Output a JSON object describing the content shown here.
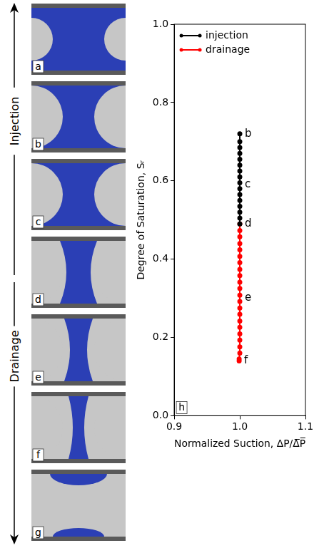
{
  "chart_data": {
    "type": "line",
    "x_label": "Normalized Suction, ΔP/Δ̅P̅",
    "y_label": "Degree of Saturation, Sᵣ",
    "panel_label": "h",
    "xlim": [
      0.9,
      1.1
    ],
    "xticks": [
      0.9,
      {
        "value": 1,
        "label": "1.0"
      },
      1.1
    ],
    "ylim": [
      0,
      1
    ],
    "yticks": [
      {
        "value": 0,
        "label": "0.0"
      },
      0.2,
      0.4,
      0.6,
      0.8,
      {
        "value": 1,
        "label": "1.0"
      }
    ],
    "grid": false,
    "legend": "upper left",
    "series": [
      {
        "name": "injection",
        "color": "#000000",
        "marker": "o",
        "line_style": "solid",
        "x": [
          1.0,
          1.0,
          1.0,
          1.0,
          1.0,
          1.0,
          1.0,
          1.0,
          1.0,
          1.0,
          1.0,
          1.0,
          1.0,
          1.0,
          1.0,
          1.0
        ],
        "values": [
          0.49,
          0.505,
          0.52,
          0.535,
          0.55,
          0.565,
          0.58,
          0.595,
          0.61,
          0.625,
          0.64,
          0.655,
          0.67,
          0.685,
          0.7,
          0.72
        ]
      },
      {
        "name": "drainage",
        "color": "#ff0000",
        "marker": "o",
        "line_style": "solid",
        "x": [
          1.0,
          1.0,
          1.0,
          1.0,
          1.0,
          1.0,
          1.0,
          1.0,
          1.0,
          1.0,
          1.0,
          1.0,
          1.0,
          1.0,
          1.0,
          1.0,
          1.0,
          1.0,
          1.0,
          1.0,
          1.0,
          0.999,
          0.999
        ],
        "values": [
          0.49,
          0.473,
          0.457,
          0.44,
          0.424,
          0.407,
          0.391,
          0.374,
          0.358,
          0.341,
          0.325,
          0.308,
          0.292,
          0.275,
          0.259,
          0.242,
          0.226,
          0.209,
          0.193,
          0.176,
          0.16,
          0.145,
          0.14
        ]
      }
    ],
    "annotations": [
      {
        "text": "b",
        "x": 1.0,
        "y": 0.72
      },
      {
        "text": "c",
        "x": 1.0,
        "y": 0.59
      },
      {
        "text": "d",
        "x": 1.0,
        "y": 0.49
      },
      {
        "text": "e",
        "x": 1.0,
        "y": 0.3
      },
      {
        "text": "f",
        "x": 0.999,
        "y": 0.14
      }
    ]
  },
  "snapshots": [
    "a",
    "b",
    "c",
    "d",
    "e",
    "f",
    "g"
  ],
  "phases": [
    "Injection",
    "Drainage"
  ]
}
